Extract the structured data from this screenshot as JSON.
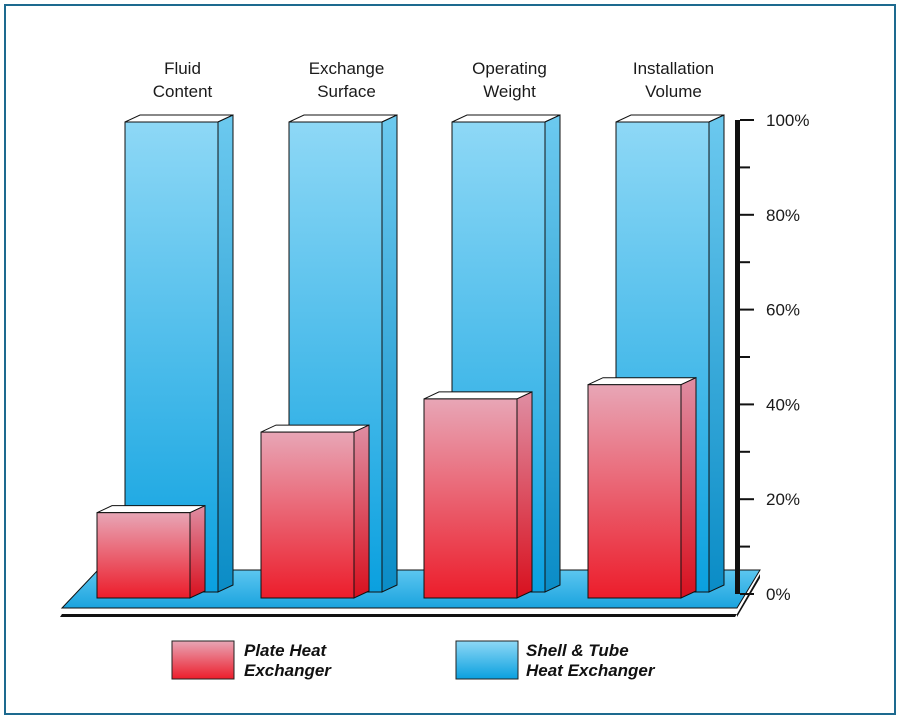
{
  "chart_data": {
    "type": "bar",
    "style": "3d",
    "categories": [
      [
        "Fluid",
        "Content"
      ],
      [
        "Exchange",
        "Surface"
      ],
      [
        "Operating",
        "Weight"
      ],
      [
        "Installation",
        "Volume"
      ]
    ],
    "series": [
      {
        "name": "Plate Heat Exchanger",
        "values": [
          18,
          35,
          42,
          45
        ]
      },
      {
        "name": "Shell & Tube Heat Exchanger",
        "values": [
          100,
          100,
          100,
          100
        ]
      }
    ],
    "ylim": [
      0,
      100
    ],
    "yticks": [
      "0%",
      "20%",
      "40%",
      "60%",
      "80%",
      "100%"
    ],
    "legend": [
      {
        "lines": [
          "Plate Heat",
          "Exchanger"
        ],
        "color": "red"
      },
      {
        "lines": [
          "Shell & Tube",
          "Heat Exchanger"
        ],
        "color": "blue"
      }
    ],
    "legend_position": "bottom",
    "grid": false
  },
  "colors": {
    "frame": "#1d6a8f",
    "blue_top": "#8ed8f6",
    "blue_bottom": "#0aa0df",
    "red_top": "#e8a6b6",
    "red_bottom": "#ec1d2b",
    "floor": "#2aaee6",
    "axis": "#111111"
  }
}
